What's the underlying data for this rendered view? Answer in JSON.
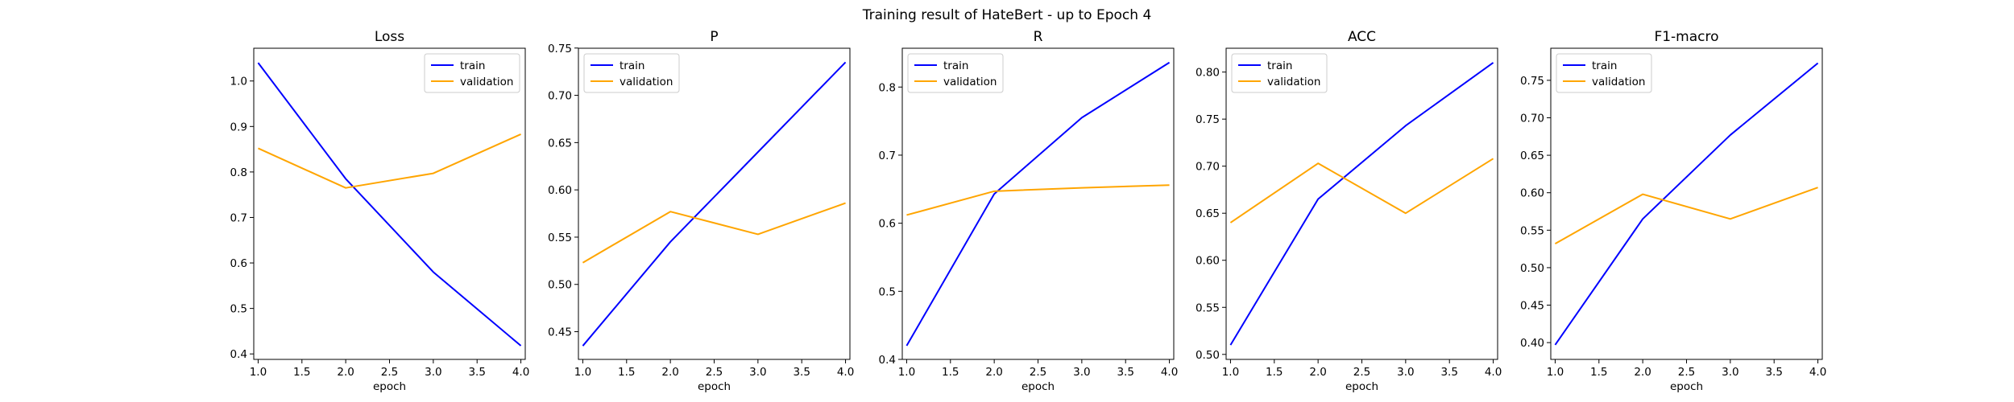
{
  "figure": {
    "suptitle": "Training result of HateBert - up to Epoch 4"
  },
  "chart_data": [
    {
      "type": "line",
      "title": "Loss",
      "xlabel": "epoch",
      "ylabel": "",
      "x": [
        1.0,
        2.0,
        3.0,
        4.0
      ],
      "xlim": [
        0.95,
        4.05
      ],
      "ylim": [
        0.388,
        1.072
      ],
      "xticks": [
        "1.0",
        "1.5",
        "2.0",
        "2.5",
        "3.0",
        "3.5",
        "4.0"
      ],
      "yticks": [
        "0.4",
        "0.5",
        "0.6",
        "0.7",
        "0.8",
        "0.9",
        "1.0"
      ],
      "legend": "upper right",
      "series": [
        {
          "name": "train",
          "color": "#0000ff",
          "values": [
            1.04,
            0.785,
            0.58,
            0.418
          ]
        },
        {
          "name": "validation",
          "color": "#ffa500",
          "values": [
            0.852,
            0.765,
            0.797,
            0.883
          ]
        }
      ]
    },
    {
      "type": "line",
      "title": "P",
      "xlabel": "epoch",
      "ylabel": "",
      "x": [
        1.0,
        2.0,
        3.0,
        4.0
      ],
      "xlim": [
        0.95,
        4.05
      ],
      "ylim": [
        0.4207,
        0.7498
      ],
      "xticks": [
        "1.0",
        "1.5",
        "2.0",
        "2.5",
        "3.0",
        "3.5",
        "4.0"
      ],
      "yticks": [
        "0.45",
        "0.50",
        "0.55",
        "0.60",
        "0.65",
        "0.70",
        "0.75"
      ],
      "legend": "upper left",
      "series": [
        {
          "name": "train",
          "color": "#0000ff",
          "values": [
            0.435,
            0.545,
            0.64,
            0.735
          ]
        },
        {
          "name": "validation",
          "color": "#ffa500",
          "values": [
            0.523,
            0.577,
            0.553,
            0.586
          ]
        }
      ]
    },
    {
      "type": "line",
      "title": "R",
      "xlabel": "epoch",
      "ylabel": "",
      "x": [
        1.0,
        2.0,
        3.0,
        4.0
      ],
      "xlim": [
        0.95,
        4.05
      ],
      "ylim": [
        0.4,
        0.857
      ],
      "xticks": [
        "1.0",
        "1.5",
        "2.0",
        "2.5",
        "3.0",
        "3.5",
        "4.0"
      ],
      "yticks": [
        "0.4",
        "0.5",
        "0.6",
        "0.7",
        "0.8"
      ],
      "legend": "upper left",
      "series": [
        {
          "name": "train",
          "color": "#0000ff",
          "values": [
            0.42,
            0.643,
            0.755,
            0.836
          ]
        },
        {
          "name": "validation",
          "color": "#ffa500",
          "values": [
            0.612,
            0.647,
            0.652,
            0.656
          ]
        }
      ]
    },
    {
      "type": "line",
      "title": "ACC",
      "xlabel": "epoch",
      "ylabel": "",
      "x": [
        1.0,
        2.0,
        3.0,
        4.0
      ],
      "xlim": [
        0.95,
        4.05
      ],
      "ylim": [
        0.4947,
        0.8253
      ],
      "xticks": [
        "1.0",
        "1.5",
        "2.0",
        "2.5",
        "3.0",
        "3.5",
        "4.0"
      ],
      "yticks": [
        "0.50",
        "0.55",
        "0.60",
        "0.65",
        "0.70",
        "0.75",
        "0.80"
      ],
      "legend": "upper left",
      "series": [
        {
          "name": "train",
          "color": "#0000ff",
          "values": [
            0.51,
            0.665,
            0.743,
            0.81
          ]
        },
        {
          "name": "validation",
          "color": "#ffa500",
          "values": [
            0.64,
            0.703,
            0.65,
            0.708
          ]
        }
      ]
    },
    {
      "type": "line",
      "title": "F1-macro",
      "xlabel": "epoch",
      "ylabel": "",
      "x": [
        1.0,
        2.0,
        3.0,
        4.0
      ],
      "xlim": [
        0.95,
        4.05
      ],
      "ylim": [
        0.3776,
        0.7928
      ],
      "xticks": [
        "1.0",
        "1.5",
        "2.0",
        "2.5",
        "3.0",
        "3.5",
        "4.0"
      ],
      "yticks": [
        "0.40",
        "0.45",
        "0.50",
        "0.55",
        "0.60",
        "0.65",
        "0.70",
        "0.75"
      ],
      "legend": "upper left",
      "series": [
        {
          "name": "train",
          "color": "#0000ff",
          "values": [
            0.397,
            0.565,
            0.677,
            0.773
          ]
        },
        {
          "name": "validation",
          "color": "#ffa500",
          "values": [
            0.532,
            0.598,
            0.565,
            0.607
          ]
        }
      ]
    }
  ]
}
